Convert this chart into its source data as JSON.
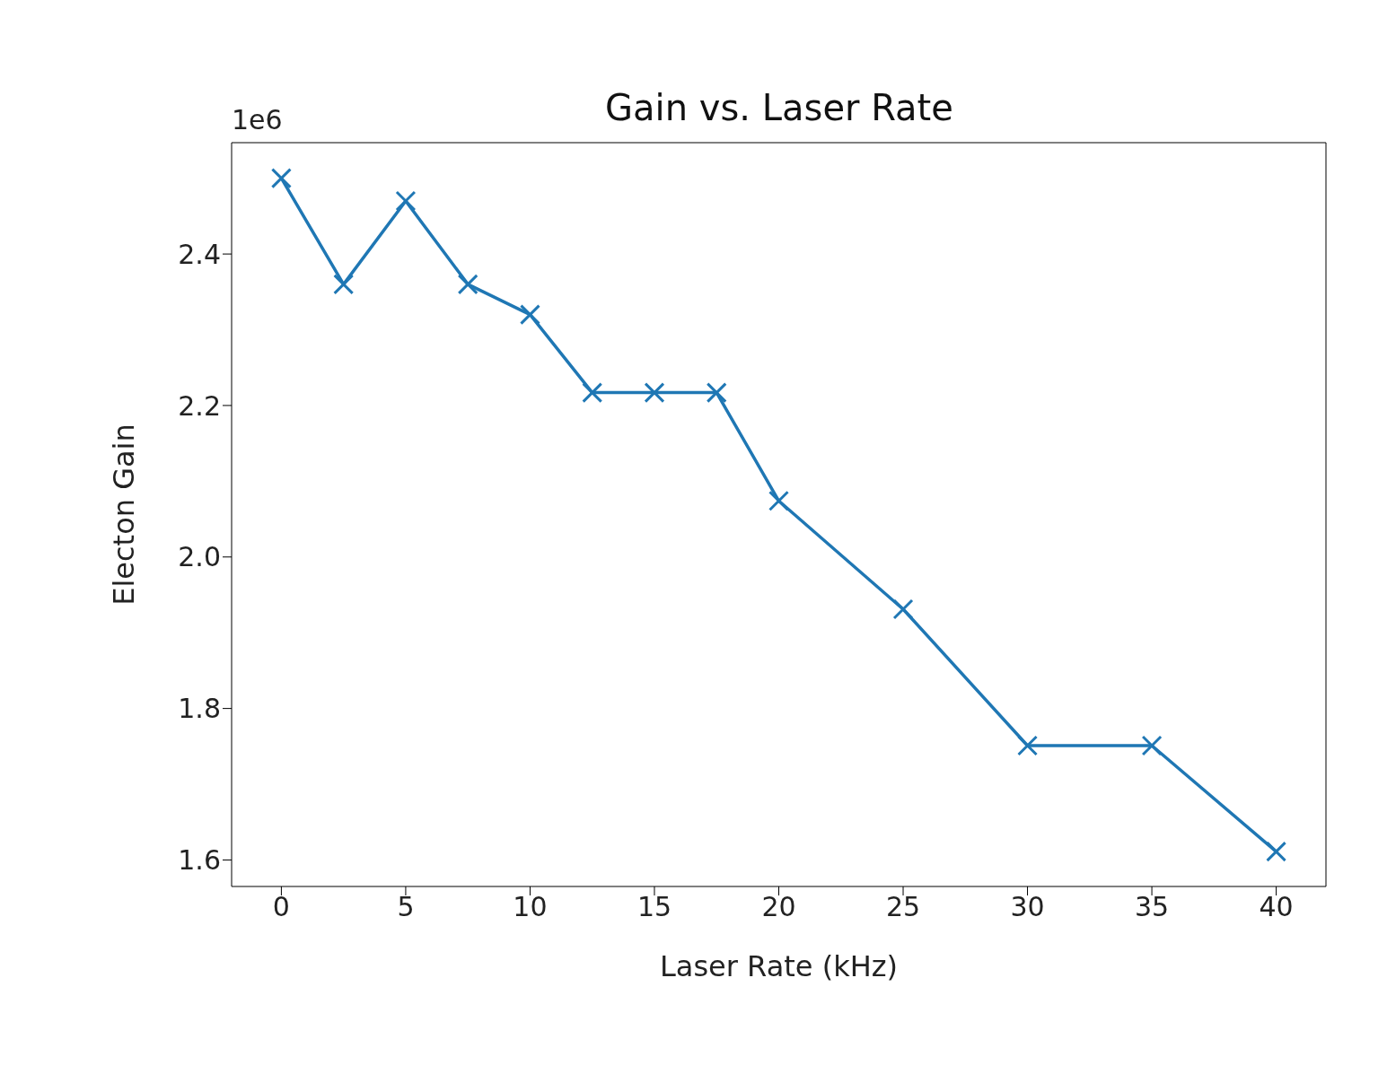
{
  "chart_data": {
    "type": "line",
    "title": "Gain vs. Laser Rate",
    "xlabel": "Laser Rate (kHz)",
    "ylabel": "Electon Gain",
    "annotations": [
      "1e6"
    ],
    "x": [
      0,
      2.5,
      5,
      7.5,
      10,
      12.5,
      15,
      17.5,
      20,
      25,
      30,
      35,
      40
    ],
    "series": [
      {
        "color": "#1f77b4",
        "values": [
          2.5,
          2.36,
          2.47,
          2.36,
          2.32,
          2.217,
          2.217,
          2.217,
          2.074,
          1.931,
          1.751,
          1.751,
          1.611
        ]
      }
    ],
    "xlim": [
      -2,
      42
    ],
    "xticks": [
      0,
      5,
      10,
      15,
      20,
      25,
      30,
      35,
      40
    ],
    "ylim": [
      1.565,
      2.547
    ],
    "yticks": [
      {
        "value": 1.6,
        "label": "1.6"
      },
      {
        "value": 1.8,
        "label": "1.8"
      },
      {
        "value": 2.0,
        "label": "2.0"
      },
      {
        "value": 2.2,
        "label": "2.2"
      },
      {
        "value": 2.4,
        "label": "2.4"
      }
    ],
    "grid": false,
    "legend": false,
    "marker": "cross",
    "line_style": "solid"
  }
}
